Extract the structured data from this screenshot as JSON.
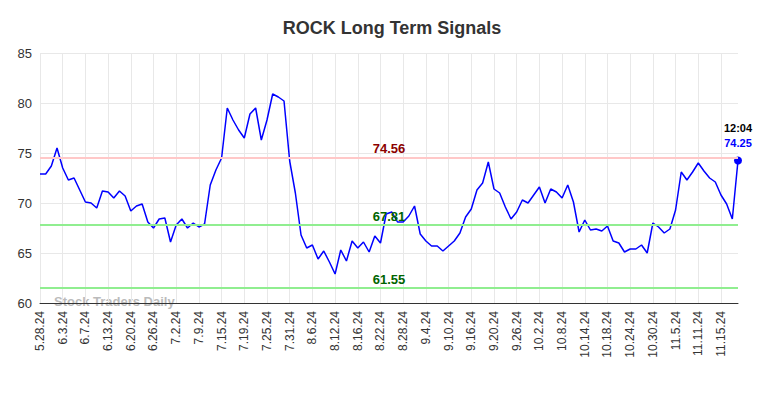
{
  "chart_data": {
    "type": "line",
    "title": "ROCK Long Term Signals",
    "categories": [
      "5.28.24",
      null,
      null,
      null,
      "6.3.24",
      null,
      null,
      null,
      "6.7.24",
      null,
      null,
      null,
      "6.13.24",
      null,
      null,
      null,
      "6.20.24",
      null,
      null,
      null,
      "6.26.24",
      null,
      null,
      null,
      "7.2.24",
      null,
      null,
      null,
      "7.9.24",
      null,
      null,
      null,
      "7.15.24",
      null,
      null,
      null,
      "7.19.24",
      null,
      null,
      null,
      "7.25.24",
      null,
      null,
      null,
      "7.31.24",
      null,
      null,
      null,
      "8.6.24",
      null,
      null,
      null,
      "8.12.24",
      null,
      null,
      null,
      "8.16.24",
      null,
      null,
      null,
      "8.22.24",
      null,
      null,
      null,
      "8.28.24",
      null,
      null,
      null,
      "9.4.24",
      null,
      null,
      null,
      "9.10.24",
      null,
      null,
      null,
      "9.16.24",
      null,
      null,
      null,
      "9.20.24",
      null,
      null,
      null,
      "9.26.24",
      null,
      null,
      null,
      "10.2.24",
      null,
      null,
      null,
      "10.8.24",
      null,
      null,
      null,
      "10.14.24",
      null,
      null,
      null,
      "10.18.24",
      null,
      null,
      null,
      "10.24.24",
      null,
      null,
      null,
      "10.30.24",
      null,
      null,
      null,
      "11.5.24",
      null,
      null,
      null,
      "11.11.24",
      null,
      null,
      null,
      "11.15.24",
      null,
      null,
      null
    ],
    "values": [
      72.9,
      72.9,
      73.7,
      75.5,
      73.5,
      72.3,
      72.5,
      71.3,
      70.1,
      70.0,
      69.5,
      71.2,
      71.1,
      70.5,
      71.2,
      70.7,
      69.2,
      69.7,
      69.9,
      68.1,
      67.5,
      68.4,
      68.5,
      66.1,
      67.8,
      68.4,
      67.5,
      68.0,
      67.6,
      67.9,
      71.8,
      73.3,
      74.5,
      79.5,
      78.3,
      77.3,
      76.5,
      78.9,
      79.5,
      76.3,
      78.3,
      80.9,
      80.6,
      80.2,
      74.2,
      71.0,
      66.8,
      65.5,
      65.8,
      64.4,
      65.2,
      64.1,
      62.9,
      65.3,
      64.2,
      66.2,
      65.5,
      66.1,
      65.1,
      66.7,
      66.0,
      68.9,
      69.1,
      68.1,
      68.1,
      68.7,
      69.7,
      66.9,
      66.2,
      65.7,
      65.7,
      65.2,
      65.7,
      66.2,
      67.0,
      68.6,
      69.4,
      71.3,
      72.0,
      74.1,
      71.4,
      71.0,
      69.6,
      68.4,
      69.1,
      70.3,
      70.0,
      70.8,
      71.6,
      70.0,
      71.4,
      71.1,
      70.5,
      71.8,
      70.1,
      67.1,
      68.3,
      67.3,
      67.4,
      67.2,
      67.7,
      66.2,
      66.0,
      65.1,
      65.4,
      65.4,
      65.8,
      65.0,
      68.0,
      67.6,
      67.0,
      67.4,
      69.3,
      73.1,
      72.3,
      73.1,
      74.0,
      73.2,
      72.5,
      72.1,
      70.8,
      69.9,
      68.4,
      74.25
    ],
    "color": "#0000ff",
    "ylim": [
      60,
      85
    ],
    "yticks": [
      60,
      65,
      70,
      75,
      80,
      85
    ],
    "grid": true,
    "reference_lines": [
      {
        "value": 74.56,
        "label": "74.56",
        "color": "#ffc8c8",
        "label_color": "#8b0000"
      },
      {
        "value": 67.81,
        "label": "67.81",
        "color": "#90ee90",
        "label_color": "#006400"
      },
      {
        "value": 61.55,
        "label": "61.55",
        "color": "#90ee90",
        "label_color": "#006400"
      }
    ],
    "last_point_label": {
      "time": "12:04",
      "value": 74.25
    },
    "watermark": "Stock Traders Daily"
  }
}
